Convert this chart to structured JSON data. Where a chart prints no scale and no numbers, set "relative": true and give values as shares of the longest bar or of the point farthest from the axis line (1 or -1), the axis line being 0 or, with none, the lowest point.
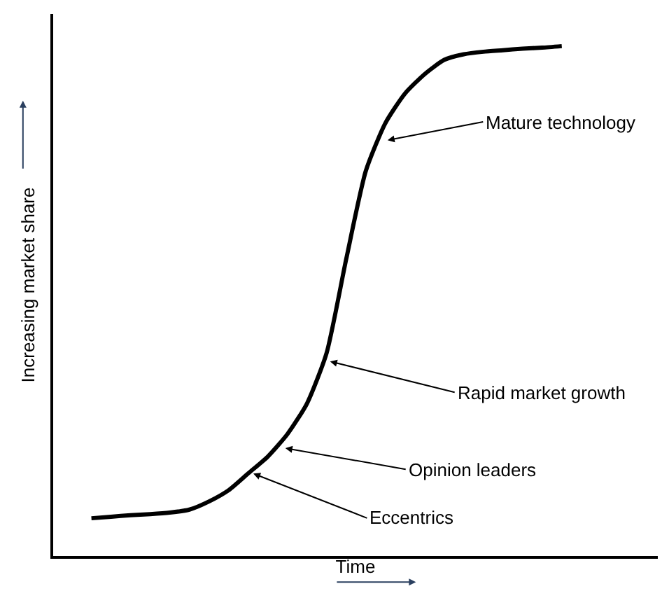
{
  "chart_data": {
    "type": "line",
    "relative": true,
    "xlabel": "Time",
    "ylabel": "Increasing market share",
    "tick_labels": false,
    "marker": "none",
    "line_style": "solid",
    "categories": [
      null,
      null,
      null,
      null,
      null,
      null,
      null,
      null,
      null,
      null,
      null,
      null,
      null,
      null,
      null,
      null,
      null,
      null,
      null,
      null,
      null,
      null,
      null,
      null,
      null
    ],
    "series": [
      {
        "color": "#000000",
        "values": [
          0.074,
          0.077,
          0.08,
          0.082,
          0.085,
          0.091,
          0.107,
          0.129,
          0.162,
          0.195,
          0.239,
          0.299,
          0.398,
          0.582,
          0.755,
          0.849,
          0.907,
          0.945,
          0.973,
          0.984,
          0.989,
          0.992,
          0.995,
          0.997,
          1.0
        ]
      }
    ],
    "annotations": [
      "Mature technology",
      "Rapid market growth",
      "Opinion leaders",
      "Eccentrics"
    ]
  }
}
